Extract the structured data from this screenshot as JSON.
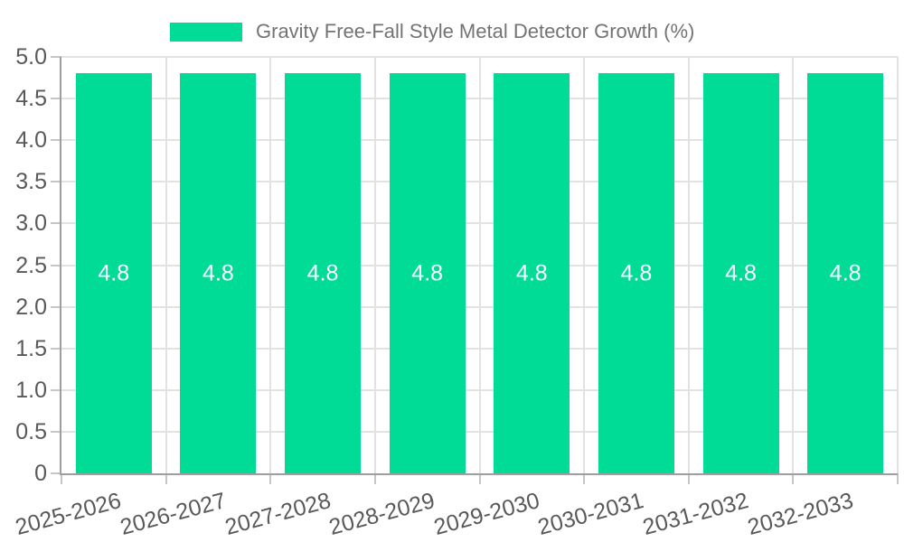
{
  "chart_data": {
    "type": "bar",
    "title": "Gravity Free-Fall Style Metal Detector Growth (%)",
    "legend": [
      "Gravity Free-Fall Style Metal Detector Growth (%)"
    ],
    "legend_position": "top-center",
    "categories": [
      "2025-2026",
      "2026-2027",
      "2027-2028",
      "2028-2029",
      "2029-2030",
      "2030-2031",
      "2031-2032",
      "2032-2033"
    ],
    "values": [
      4.8,
      4.8,
      4.8,
      4.8,
      4.8,
      4.8,
      4.8,
      4.8
    ],
    "value_labels": [
      "4.8",
      "4.8",
      "4.8",
      "4.8",
      "4.8",
      "4.8",
      "4.8",
      "4.8"
    ],
    "xlabel": "",
    "ylabel": "",
    "ylim": [
      0,
      5
    ],
    "yticks": [
      0,
      0.5,
      1,
      1.5,
      2,
      2.5,
      3,
      3.5,
      4,
      4.5,
      5
    ],
    "ytick_labels": [
      "0",
      "0.5",
      "1.0",
      "1.5",
      "2.0",
      "2.5",
      "3.0",
      "3.5",
      "4.0",
      "4.5",
      "5.0"
    ],
    "grid": true,
    "value_label_position": "inside-middle"
  },
  "colors": {
    "bar": "#00DC96",
    "value_label": "#FFFFFF",
    "axis_line": "#9E9E9E",
    "tick": "#C6C6C6",
    "gridline": "#E2E2E2",
    "axis_text": "#595959",
    "legend_text": "#737373",
    "background": "#FFFFFF"
  }
}
